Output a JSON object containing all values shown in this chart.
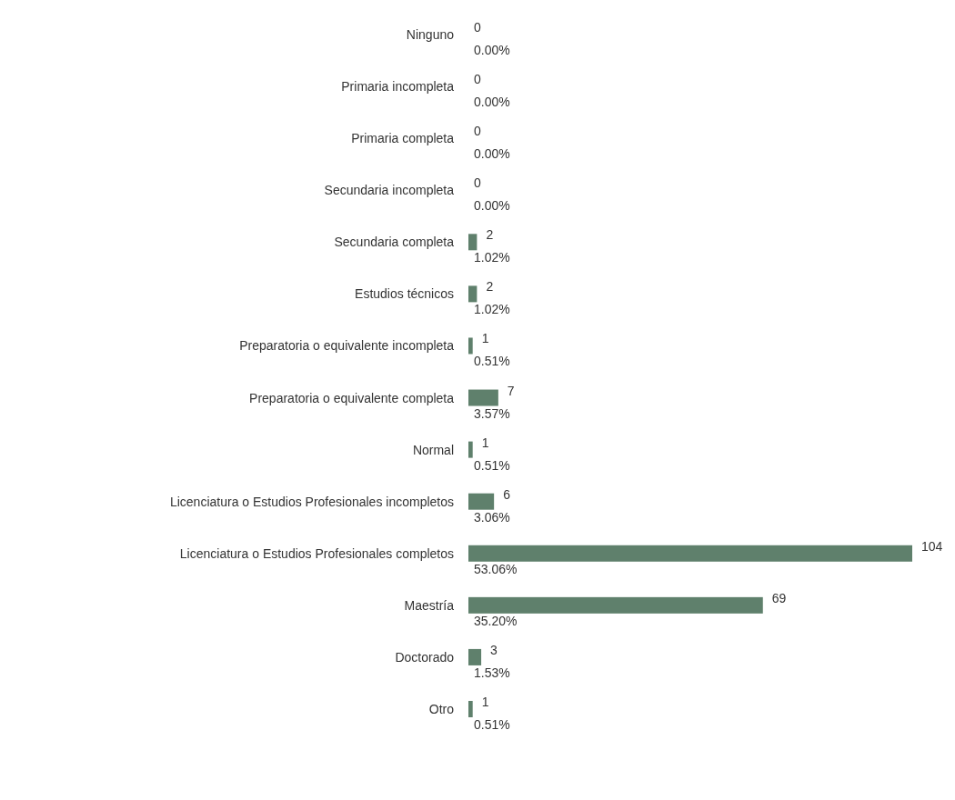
{
  "chart_data": {
    "type": "bar",
    "orientation": "horizontal",
    "color": "#5f806c",
    "categories": [
      "Ninguno",
      "Primaria incompleta",
      "Primaria completa",
      "Secundaria incompleta",
      "Secundaria completa",
      "Estudios técnicos",
      "Preparatoria o equivalente incompleta",
      "Preparatoria o equivalente completa",
      "Normal",
      "Licenciatura o Estudios Profesionales incompletos",
      "Licenciatura o Estudios Profesionales completos",
      "Maestría",
      "Doctorado",
      "Otro"
    ],
    "values": [
      0,
      0,
      0,
      0,
      2,
      2,
      1,
      7,
      1,
      6,
      104,
      69,
      3,
      1
    ],
    "value_labels": [
      "0\n0.00%",
      "0\n0.00%",
      "0\n0.00%",
      "0\n0.00%",
      "2\n1.02%",
      "2\n1.02%",
      "1\n0.51%",
      "7\n3.57%",
      "1\n0.51%",
      "6\n3.06%",
      "104\n53.06%",
      "69\n35.20%",
      "3\n1.53%",
      "1\n0.51%"
    ]
  }
}
